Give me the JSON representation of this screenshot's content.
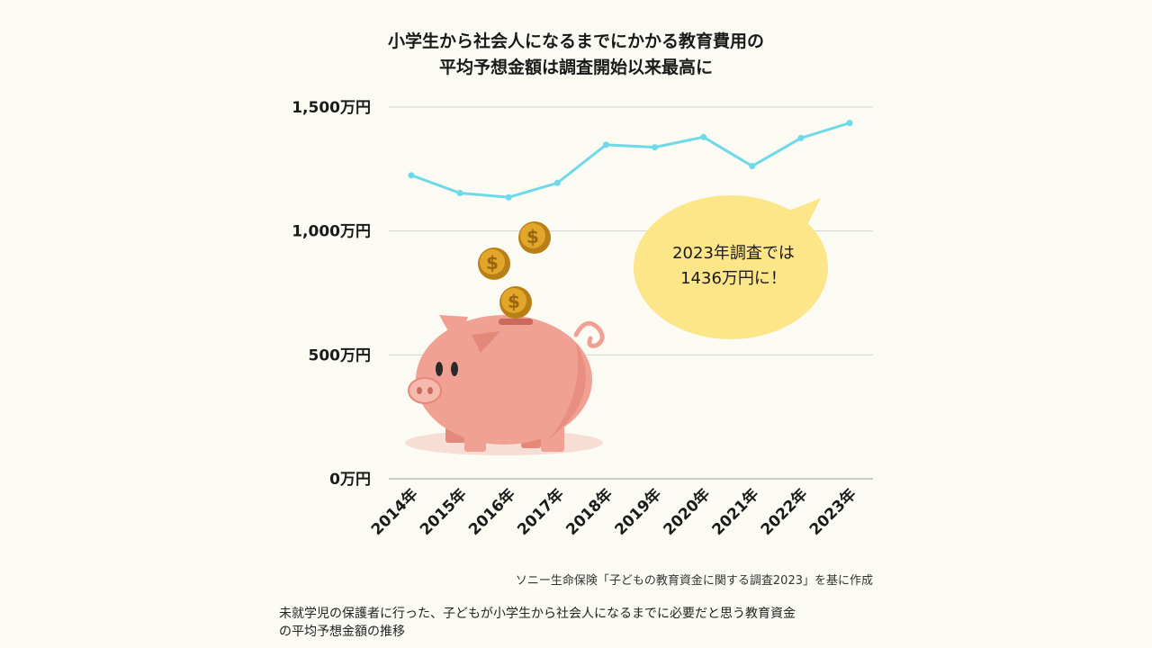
{
  "header": {
    "title_line1": "小学生から社会人になるまでにかかる教育費用の",
    "title_line2": "平均予想金額は調査開始以来最高に"
  },
  "callout": {
    "line1": "2023年調査では",
    "line2": "1436万円に！"
  },
  "source": "ソニー生命保険「子どもの教育資金に関する調査2023」を基に作成",
  "caption": {
    "line1": "未就学児の保護者に行った、子どもが小学生から社会人になるまでに必要だと思う教育資金",
    "line2": "の平均予想金額の推移"
  },
  "colors": {
    "line": "#6fd9e8",
    "grid": "#d4d4d4",
    "bubble": "#fde58a",
    "pig": "#f1a193",
    "coin": "#e2a62a"
  },
  "chart_data": {
    "type": "line",
    "title": "",
    "xlabel": "",
    "ylabel": "",
    "ylim": [
      0,
      1500
    ],
    "yticks": [
      0,
      500,
      1000,
      1500
    ],
    "ytick_labels": [
      "0万円",
      "500万円",
      "1,000万円",
      "1,500万円"
    ],
    "categories": [
      "2014年",
      "2015年",
      "2016年",
      "2017年",
      "2018年",
      "2019年",
      "2020年",
      "2021年",
      "2022年",
      "2023年"
    ],
    "series": [
      {
        "values": [
          1225,
          1153,
          1136,
          1194,
          1348,
          1338,
          1379,
          1262,
          1375,
          1436
        ]
      }
    ],
    "grid": true,
    "legend": "none"
  }
}
